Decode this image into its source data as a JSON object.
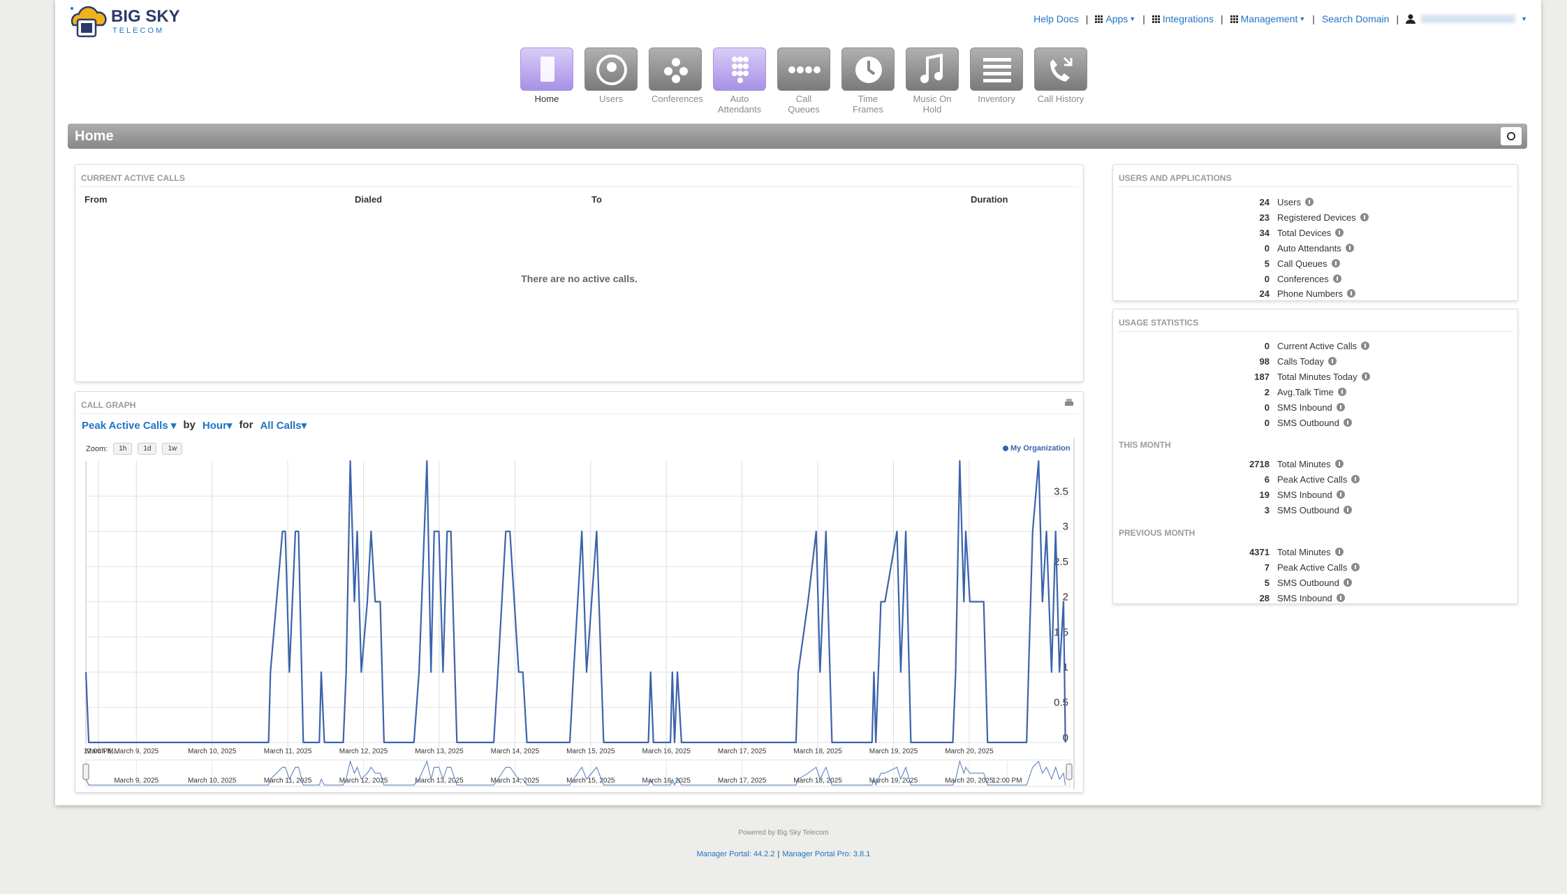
{
  "header": {
    "logo_title": "BIG SKY",
    "logo_subtitle": "TELECOM",
    "links": [
      "Help Docs",
      "Apps",
      "Integrations",
      "Management",
      "Search Domain"
    ]
  },
  "nav": [
    "Home",
    "Users",
    "Conferences",
    "Auto Attendants",
    "Call Queues",
    "Time Frames",
    "Music On Hold",
    "Inventory",
    "Call History"
  ],
  "page_title": "Home",
  "active_calls": {
    "title": "CURRENT ACTIVE CALLS",
    "columns": [
      "From",
      "Dialed",
      "To",
      "Duration"
    ],
    "empty": "There are no active calls."
  },
  "call_graph": {
    "title": "CALL GRAPH",
    "metric": "Peak Active Calls",
    "by": "by",
    "period": "Hour",
    "for": "for",
    "filter": "All Calls",
    "zoom_label": "Zoom:",
    "zoom_buttons": [
      "1h",
      "1d",
      "1w"
    ]
  },
  "chart_data": {
    "type": "line",
    "x": [
      0,
      0.9,
      57.9,
      58.5,
      62.3,
      63.2,
      64.5,
      66.4,
      67.4,
      68.9,
      74.0,
      74.6,
      75.6,
      81.6,
      82.5,
      83.8,
      85.1,
      86.0,
      87.3,
      89.2,
      90.4,
      91.7,
      93.3,
      94.5,
      104.0,
      105.6,
      108.1,
      109.4,
      110.4,
      111.9,
      113.2,
      114.5,
      115.7,
      117.6,
      129.3,
      130.6,
      133.1,
      134.4,
      137.2,
      138.5,
      139.8,
      153.4,
      154.6,
      157.2,
      158.7,
      161.9,
      164.1,
      178.3,
      179.0,
      179.9,
      185.3,
      185.9,
      186.6,
      187.5,
      188.8,
      225.1,
      225.8,
      228.9,
      231.5,
      232.7,
      234.6,
      236.5,
      249.2,
      249.8,
      250.4,
      252.0,
      253.3,
      257.1,
      258.3,
      259.9,
      261.5,
      274.8,
      275.7,
      277.0,
      278.3,
      278.9,
      280.2,
      284.6,
      285.8,
      298.2,
      298.8,
      300.1,
      302.0,
      303.2,
      304.5,
      306.1,
      307.4,
      308.6,
      309.9,
      310.5
    ],
    "series": [
      {
        "name": "My Organization",
        "color": "#3b63ab",
        "values": [
          1,
          0,
          0,
          1,
          3,
          3,
          1,
          3,
          3,
          0,
          0,
          1,
          0,
          0,
          1,
          4,
          2,
          3,
          1,
          2,
          3,
          2,
          2,
          0,
          0,
          1,
          4,
          1,
          3,
          3,
          1,
          3,
          3,
          0,
          0,
          1,
          3,
          3,
          1,
          1,
          0,
          0,
          1,
          3,
          1,
          3,
          0,
          0,
          1,
          0,
          0,
          1,
          0,
          1,
          0,
          0,
          1,
          2,
          3,
          1,
          3,
          0,
          0,
          1,
          0,
          2,
          2,
          3,
          1,
          3,
          0,
          0,
          1,
          4,
          2,
          3,
          2,
          2,
          0,
          0,
          1,
          3,
          4,
          2,
          3,
          1,
          3,
          1,
          2,
          0
        ]
      }
    ],
    "xlim": [
      0,
      311
    ],
    "ylim": [
      0,
      4
    ],
    "yticks": [
      0,
      0.5,
      1,
      1.5,
      2,
      2.5,
      3,
      3.5
    ],
    "xticks": [
      {
        "value": 0,
        "label": "March 8,..."
      },
      {
        "value": 4,
        "label": "12:00 PM"
      },
      {
        "value": 16,
        "label": "March 9, 2025"
      },
      {
        "value": 40,
        "label": "March 10, 2025"
      },
      {
        "value": 64,
        "label": "March 11, 2025"
      },
      {
        "value": 88,
        "label": "March 12, 2025"
      },
      {
        "value": 112,
        "label": "March 13, 2025"
      },
      {
        "value": 136,
        "label": "March 14, 2025"
      },
      {
        "value": 160,
        "label": "March 15, 2025"
      },
      {
        "value": 184,
        "label": "March 16, 2025"
      },
      {
        "value": 208,
        "label": "March 17, 2025"
      },
      {
        "value": 232,
        "label": "March 18, 2025"
      },
      {
        "value": 256,
        "label": "March 19, 2025"
      },
      {
        "value": 280,
        "label": "March 20, 2025"
      }
    ],
    "navigator_ticks": [
      {
        "value": 16,
        "label": "March 9, 2025"
      },
      {
        "value": 40,
        "label": "March 10, 2025"
      },
      {
        "value": 64,
        "label": "March 11, 2025"
      },
      {
        "value": 88,
        "label": "March 12, 2025"
      },
      {
        "value": 112,
        "label": "March 13, 2025"
      },
      {
        "value": 136,
        "label": "March 14, 2025"
      },
      {
        "value": 160,
        "label": "March 15, 2025"
      },
      {
        "value": 184,
        "label": "March 16, 2025"
      },
      {
        "value": 208,
        "label": "March 17, 2025"
      },
      {
        "value": 232,
        "label": "March 18, 2025"
      },
      {
        "value": 256,
        "label": "March 19, 2025"
      },
      {
        "value": 280,
        "label": "March 20, 2025"
      },
      {
        "value": 292,
        "label": "12:00 PM"
      }
    ],
    "grid": true,
    "legend": "top-right"
  },
  "users_apps": {
    "title": "USERS AND APPLICATIONS",
    "items": [
      {
        "value": 24,
        "label": "Users"
      },
      {
        "value": 23,
        "label": "Registered Devices"
      },
      {
        "value": 34,
        "label": "Total Devices"
      },
      {
        "value": 0,
        "label": "Auto Attendants"
      },
      {
        "value": 5,
        "label": "Call Queues"
      },
      {
        "value": 0,
        "label": "Conferences"
      },
      {
        "value": 24,
        "label": "Phone Numbers"
      }
    ]
  },
  "usage": {
    "title": "USAGE STATISTICS",
    "sections": [
      {
        "items": [
          {
            "value": 0,
            "label": "Current Active Calls"
          },
          {
            "value": 98,
            "label": "Calls Today"
          },
          {
            "value": 187,
            "label": "Total Minutes Today"
          },
          {
            "value": 2,
            "label": "Avg.Talk Time"
          },
          {
            "value": 0,
            "label": "SMS Inbound"
          },
          {
            "value": 0,
            "label": "SMS Outbound"
          }
        ]
      },
      {
        "title": "THIS MONTH",
        "items": [
          {
            "value": 2718,
            "label": "Total Minutes"
          },
          {
            "value": 6,
            "label": "Peak Active Calls"
          },
          {
            "value": 19,
            "label": "SMS Inbound"
          },
          {
            "value": 3,
            "label": "SMS Outbound"
          }
        ]
      },
      {
        "title": "PREVIOUS MONTH",
        "items": [
          {
            "value": 4371,
            "label": "Total Minutes"
          },
          {
            "value": 7,
            "label": "Peak Active Calls"
          },
          {
            "value": 5,
            "label": "SMS Outbound"
          },
          {
            "value": 28,
            "label": "SMS Inbound"
          }
        ]
      }
    ]
  },
  "footer": {
    "powered": "Powered by Big Sky Telecom",
    "links": [
      "Manager Portal: 44.2.2",
      "Manager Portal Pro: 3.8.1"
    ]
  }
}
